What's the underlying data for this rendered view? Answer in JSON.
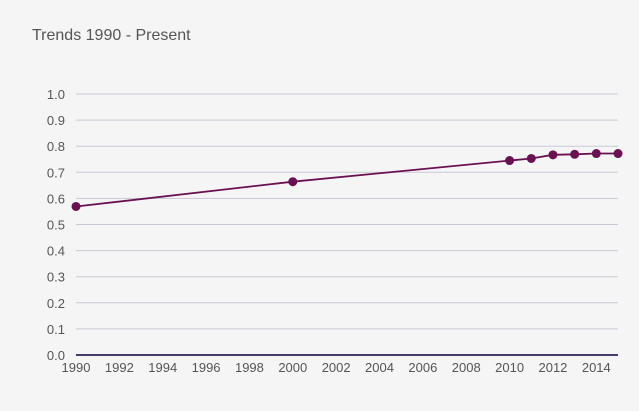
{
  "chart_data": {
    "type": "line",
    "title": "Trends 1990 - Present",
    "xlabel": "",
    "ylabel": "",
    "xlim": [
      1990,
      2015
    ],
    "ylim": [
      0.0,
      1.0
    ],
    "x_ticks": [
      "1990",
      "1992",
      "1994",
      "1996",
      "1998",
      "2000",
      "2002",
      "2004",
      "2006",
      "2008",
      "2010",
      "2012",
      "2014"
    ],
    "y_ticks": [
      "0.0",
      "0.1",
      "0.2",
      "0.3",
      "0.4",
      "0.5",
      "0.6",
      "0.7",
      "0.8",
      "0.9",
      "1.0"
    ],
    "grid": true,
    "legend": "none",
    "series": [
      {
        "color": "#6a1152",
        "points": [
          {
            "x": 1990,
            "y": 0.569
          },
          {
            "x": 2000,
            "y": 0.664
          },
          {
            "x": 2010,
            "y": 0.745
          },
          {
            "x": 2011,
            "y": 0.753
          },
          {
            "x": 2012,
            "y": 0.767
          },
          {
            "x": 2013,
            "y": 0.769
          },
          {
            "x": 2014,
            "y": 0.772
          },
          {
            "x": 2015,
            "y": 0.772
          }
        ]
      }
    ]
  }
}
